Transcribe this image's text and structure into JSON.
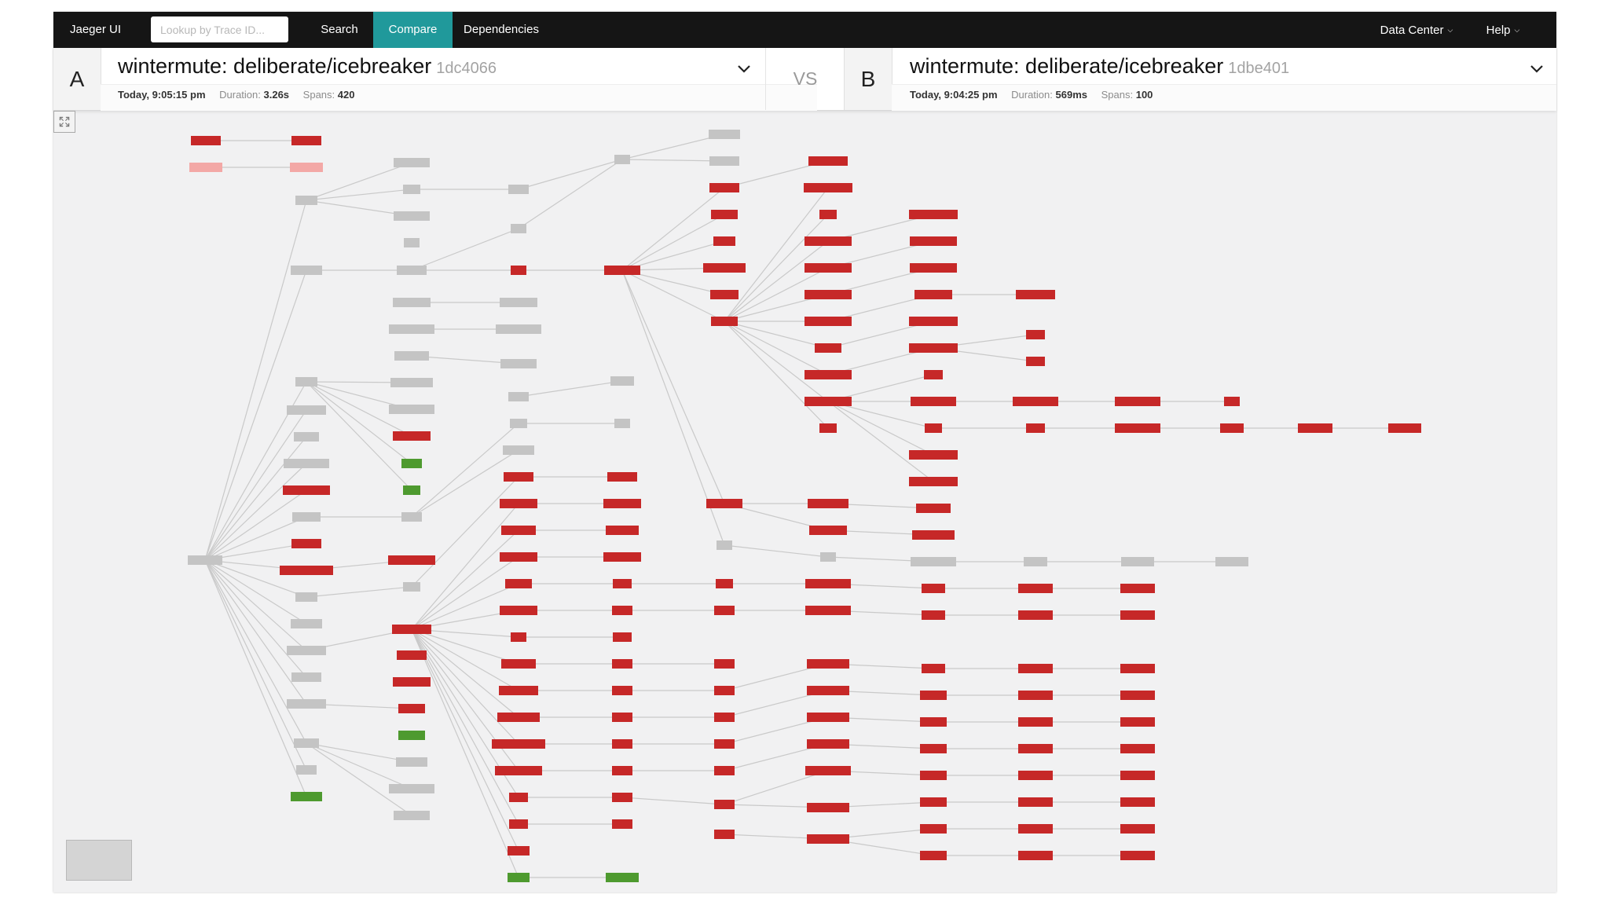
{
  "topnav": {
    "brand": "Jaeger UI",
    "lookup_placeholder": "Lookup by Trace ID...",
    "search": "Search",
    "compare": "Compare",
    "dependencies": "Dependencies",
    "data_center": "Data Center",
    "help": "Help",
    "active_color": "#20999b"
  },
  "compare": {
    "a": {
      "letter": "A",
      "title": "wintermute: deliberate/icebreaker",
      "trace_id": "1dc4066",
      "time": "Today, 9:05:15 pm",
      "duration_label": "Duration:",
      "duration": "3.26s",
      "spans_label": "Spans:",
      "spans": "420"
    },
    "vs": "VS",
    "b": {
      "letter": "B",
      "title": "wintermute: deliberate/icebreaker",
      "trace_id": "1dbe401",
      "time": "Today, 9:04:25 pm",
      "duration_label": "Duration:",
      "duration": "569ms",
      "spans_label": "Spans:",
      "spans": "100"
    }
  },
  "legend_colors": {
    "shared": "#c4c4c4",
    "only_in_b": "#c62828",
    "only_in_a": "#4e9a2f",
    "partial": "#f3a8a6",
    "edge": "#c9c9c9"
  }
}
